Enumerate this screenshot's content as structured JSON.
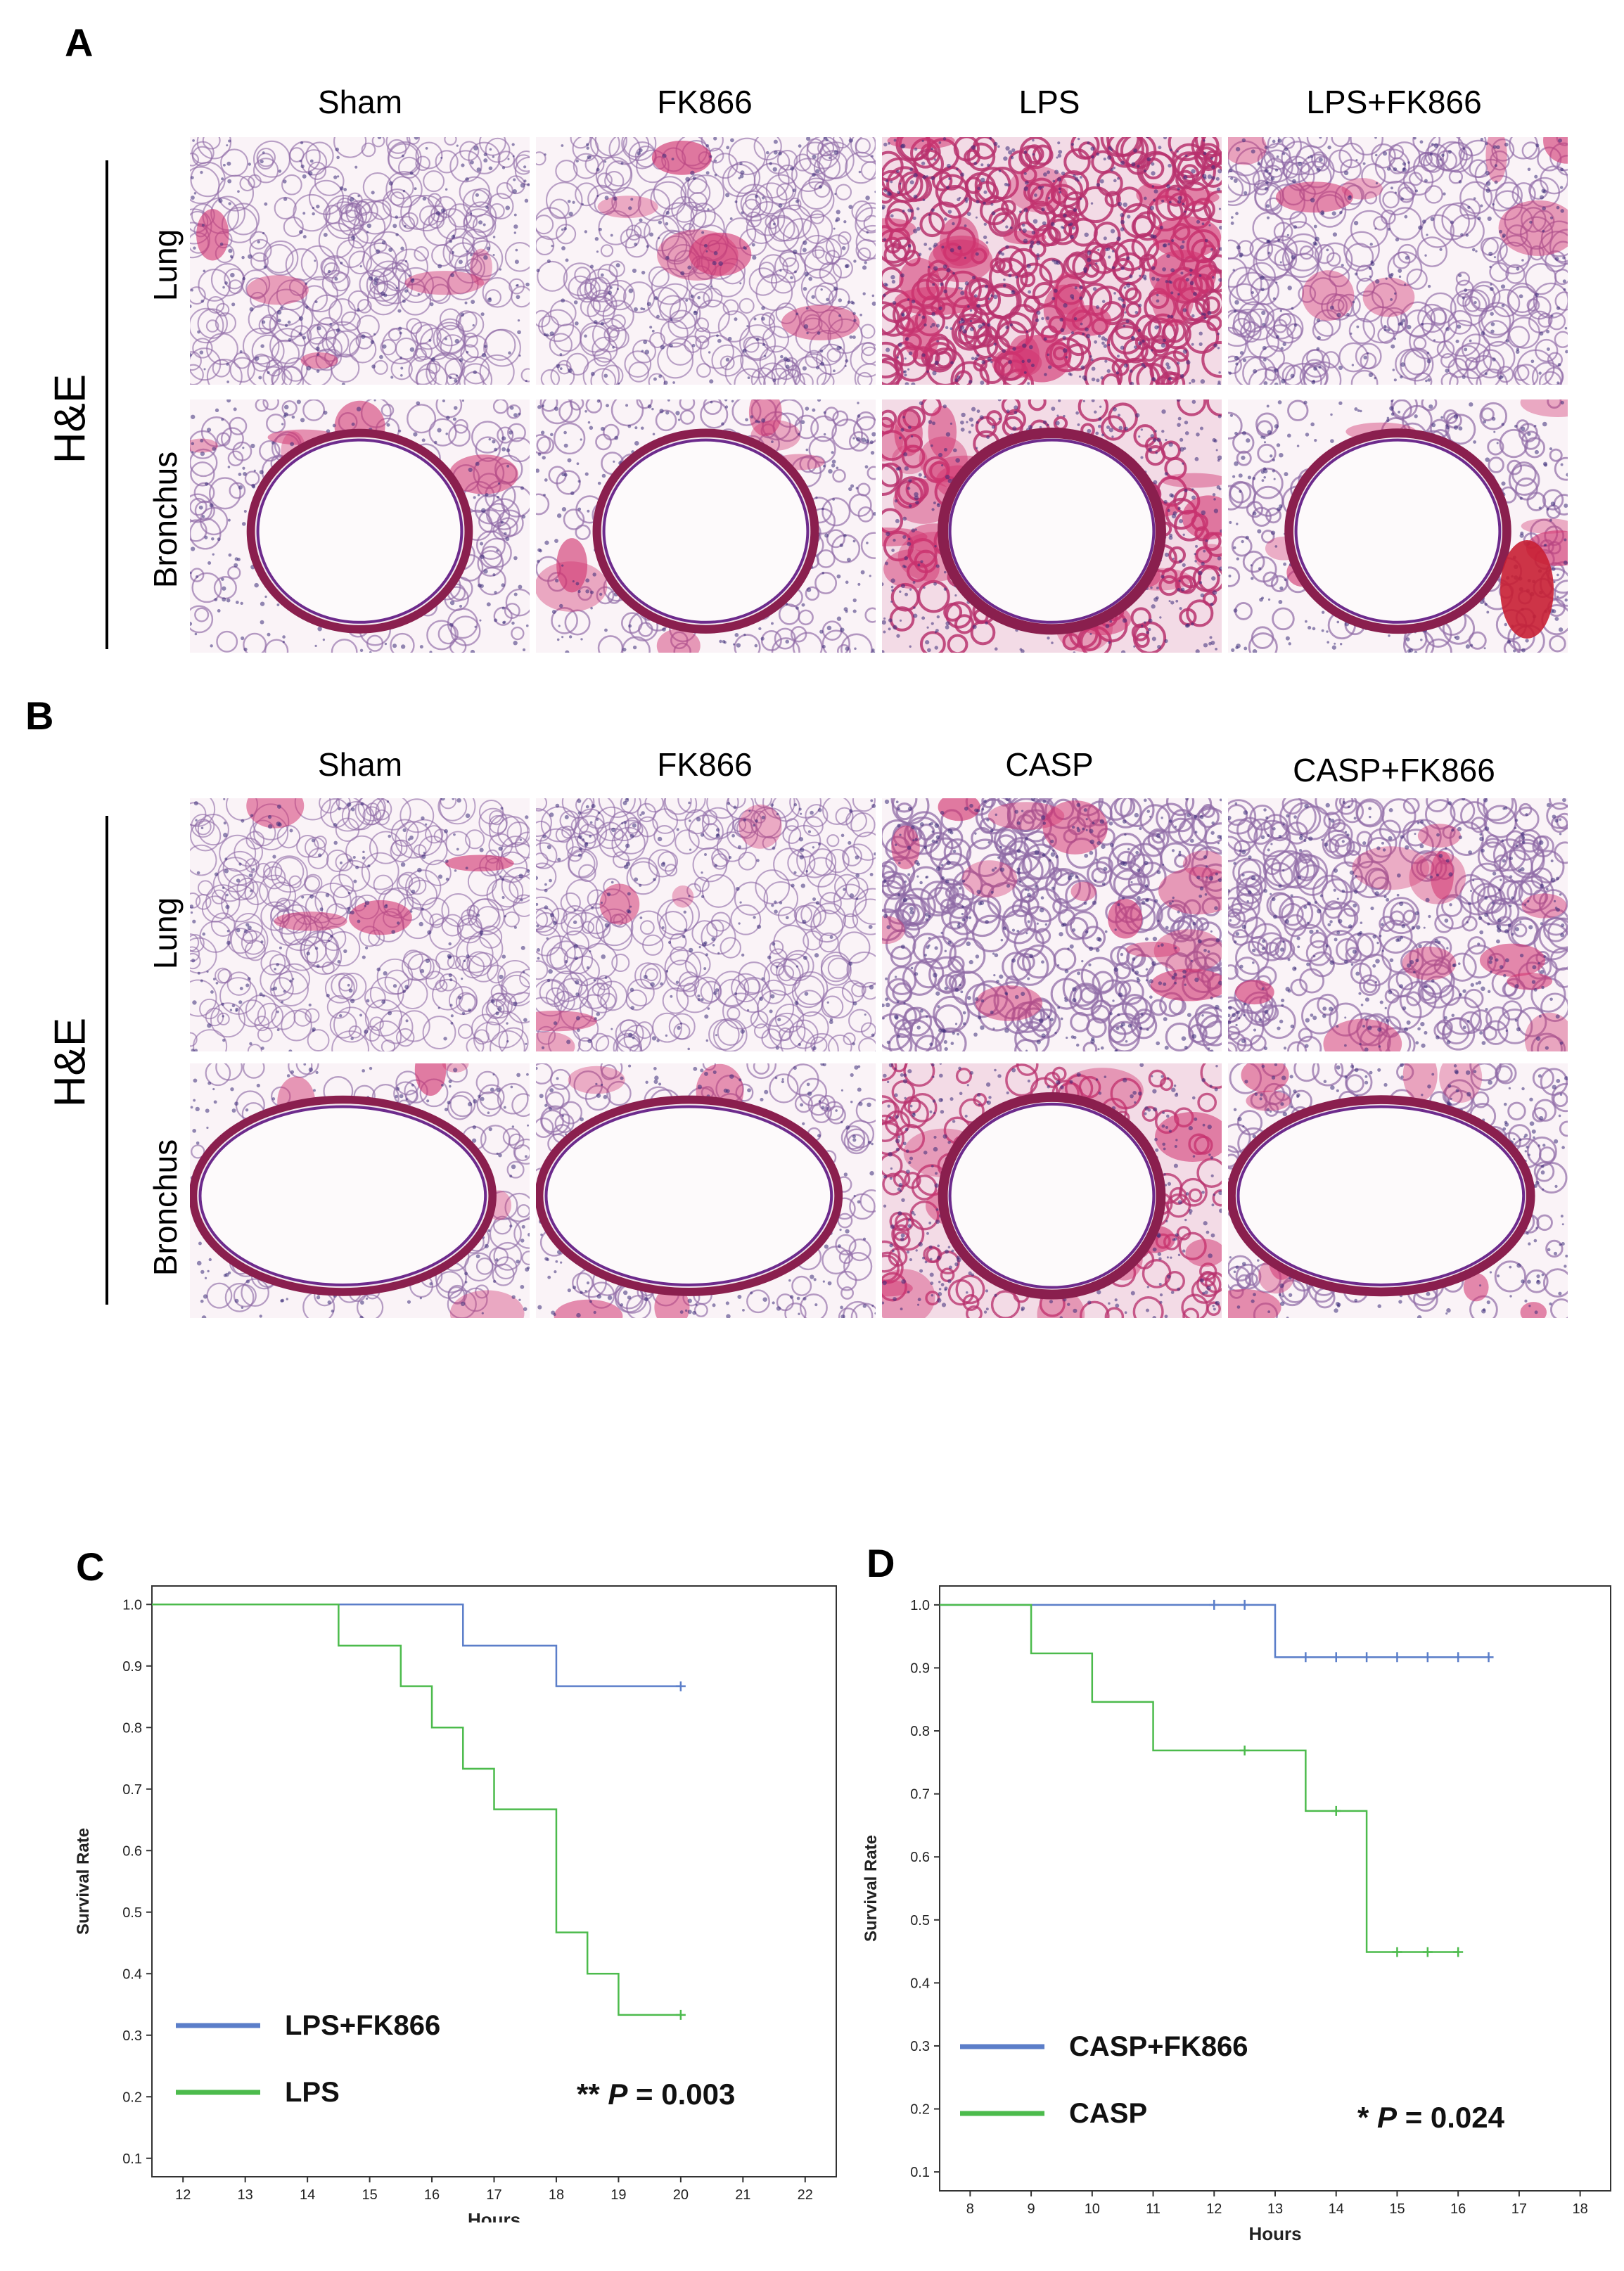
{
  "figure": {
    "panelA": {
      "letter": "A",
      "columns": [
        "Sham",
        "FK866",
        "LPS",
        "LPS+FK866"
      ],
      "rows": [
        "Lung",
        "Bronchus"
      ],
      "stain": "H&E"
    },
    "panelB": {
      "letter": "B",
      "columns": [
        "Sham",
        "FK866",
        "CASP",
        "CASP+FK866"
      ],
      "rows": [
        "Lung",
        "Bronchus"
      ],
      "stain": "H&E"
    },
    "panelC": {
      "letter": "C",
      "significance": "**",
      "p_label": "P",
      "p_value": "= 0.003"
    },
    "panelD": {
      "letter": "D",
      "significance": "*",
      "p_label": "P",
      "p_value": "= 0.024"
    }
  },
  "chart_data": [
    {
      "type": "line",
      "step": true,
      "panel": "C",
      "xlabel": "Hours",
      "ylabel": "Survival Rate",
      "xlim": [
        11.5,
        22.5
      ],
      "ylim": [
        0.07,
        1.03
      ],
      "xticks": [
        "12",
        "13",
        "14",
        "15",
        "16",
        "17",
        "18",
        "19",
        "20",
        "21",
        "22"
      ],
      "yticks": [
        "0.1",
        "0.2",
        "0.3",
        "0.4",
        "0.5",
        "0.6",
        "0.7",
        "0.8",
        "0.9",
        "1.0"
      ],
      "grid": false,
      "legend_position": "bottom-left",
      "series": [
        {
          "name": "LPS+FK866",
          "color": "#5b7ec9",
          "x": [
            11.5,
            16.5,
            18,
            20
          ],
          "y": [
            1.0,
            0.933,
            0.867,
            0.867
          ],
          "censored": [
            [
              20,
              0.867
            ]
          ]
        },
        {
          "name": "LPS",
          "color": "#4cbb4c",
          "x": [
            11.5,
            14.5,
            15.5,
            16,
            16.5,
            17,
            18,
            18.5,
            19,
            20
          ],
          "y": [
            1.0,
            0.933,
            0.867,
            0.8,
            0.733,
            0.667,
            0.467,
            0.4,
            0.333,
            0.333
          ],
          "censored": [
            [
              20,
              0.333
            ]
          ]
        }
      ]
    },
    {
      "type": "line",
      "step": true,
      "panel": "D",
      "xlabel": "Hours",
      "ylabel": "Survival Rate",
      "xlim": [
        7.5,
        18.5
      ],
      "ylim": [
        0.07,
        1.03
      ],
      "xticks": [
        "8",
        "9",
        "10",
        "11",
        "12",
        "13",
        "14",
        "15",
        "16",
        "17",
        "18"
      ],
      "yticks": [
        "0.1",
        "0.2",
        "0.3",
        "0.4",
        "0.5",
        "0.6",
        "0.7",
        "0.8",
        "0.9",
        "1.0"
      ],
      "grid": false,
      "legend_position": "bottom-left",
      "series": [
        {
          "name": "CASP+FK866",
          "color": "#5b7ec9",
          "x": [
            7.5,
            13,
            16.5
          ],
          "y": [
            1.0,
            0.917,
            0.917
          ],
          "censored": [
            [
              12,
              1.0
            ],
            [
              12.5,
              1.0
            ],
            [
              13.5,
              0.917
            ],
            [
              14,
              0.917
            ],
            [
              14.5,
              0.917
            ],
            [
              15,
              0.917
            ],
            [
              15.5,
              0.917
            ],
            [
              16,
              0.917
            ],
            [
              16.5,
              0.917
            ]
          ]
        },
        {
          "name": "CASP",
          "color": "#4cbb4c",
          "x": [
            7.5,
            9,
            10,
            11,
            13.5,
            14.5,
            16
          ],
          "y": [
            1.0,
            0.923,
            0.846,
            0.769,
            0.673,
            0.449,
            0.449
          ],
          "censored": [
            [
              12.5,
              0.769
            ],
            [
              14,
              0.673
            ],
            [
              15,
              0.449
            ],
            [
              15.5,
              0.449
            ],
            [
              16,
              0.449
            ]
          ]
        }
      ]
    }
  ]
}
